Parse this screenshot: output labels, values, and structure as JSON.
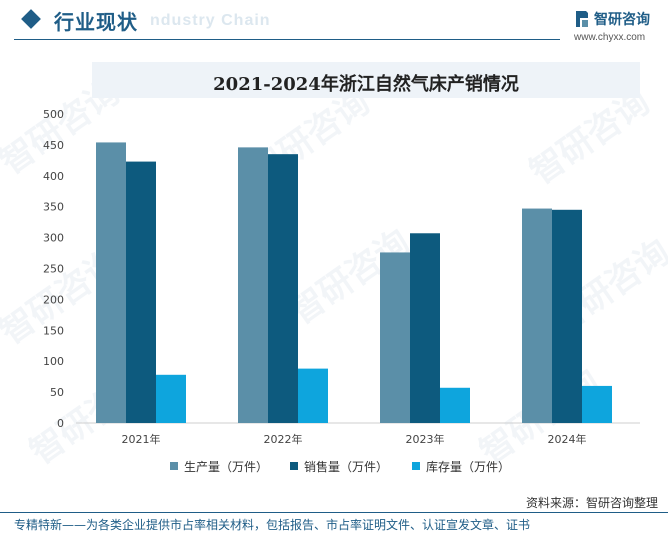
{
  "header": {
    "title": "行业现状",
    "ghost_text": "ndustry Chain"
  },
  "brand": {
    "name": "智研咨询",
    "url": "www.chyxx.com",
    "watermark": "智研咨询"
  },
  "chart_data": {
    "type": "bar",
    "title": "2021-2024年浙江自然气床产销情况",
    "categories": [
      "2021年",
      "2022年",
      "2023年",
      "2024年"
    ],
    "series": [
      {
        "name": "生产量（万件）",
        "values": [
          454,
          446,
          276,
          347
        ],
        "color": "#5b8fa8"
      },
      {
        "name": "销售量（万件）",
        "values": [
          423,
          435,
          307,
          345
        ],
        "color": "#0d5a7e"
      },
      {
        "name": "库存量（万件）",
        "values": [
          78,
          88,
          57,
          60
        ],
        "color": "#0ea5dd"
      }
    ],
    "ylim": [
      0,
      500
    ],
    "yticks": [
      "0",
      "50",
      "100",
      "150",
      "200",
      "250",
      "300",
      "350",
      "400",
      "450",
      "500"
    ],
    "xlabel": "",
    "ylabel": "",
    "grid": false,
    "legend_position": "bottom"
  },
  "source": "资料来源：智研咨询整理",
  "footer": "专精特新——为各类企业提供市占率相关材料，包括报告、市占率证明文件、认证宣发文章、证书"
}
